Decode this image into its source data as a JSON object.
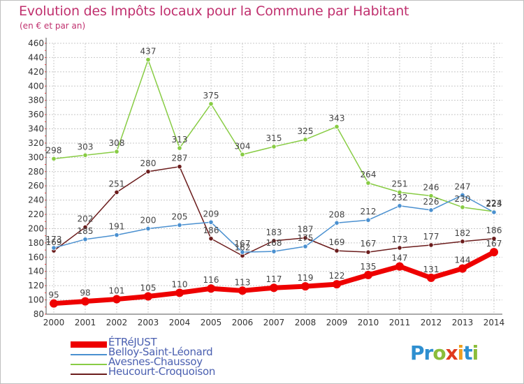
{
  "header": {
    "title": "Evolution des Impôts locaux pour la Commune par Habitant",
    "subtitle": "(en € et par an)"
  },
  "colors": {
    "title": "#c0306e",
    "legend_text": "#4a5fb0",
    "grid": "#c8c8c8"
  },
  "logo": {
    "text": "Proxiti",
    "letters": [
      {
        "ch": "P",
        "color": "#2e8fd0"
      },
      {
        "ch": "r",
        "color": "#2e8fd0"
      },
      {
        "ch": "o",
        "color": "#8bbd3a"
      },
      {
        "ch": "x",
        "color": "#e03a1e"
      },
      {
        "ch": "i",
        "color": "#f0a020"
      },
      {
        "ch": "t",
        "color": "#2e8fd0"
      },
      {
        "ch": "i",
        "color": "#8bbd3a"
      }
    ]
  },
  "chart_data": {
    "type": "line",
    "title": "Evolution des Impôts locaux pour la Commune par Habitant",
    "subtitle": "(en € et par an)",
    "xlabel": "",
    "ylabel": "",
    "ylim": [
      80,
      460
    ],
    "y_ticks": [
      80,
      100,
      120,
      140,
      160,
      180,
      200,
      220,
      240,
      260,
      280,
      300,
      320,
      340,
      360,
      380,
      400,
      420,
      440,
      460
    ],
    "x": [
      "2000",
      "2001",
      "2002",
      "2003",
      "2004",
      "2005",
      "2006",
      "2007",
      "2008",
      "2009",
      "2010",
      "2011",
      "2012",
      "2013",
      "2014"
    ],
    "grid": true,
    "legend": "bottom-left",
    "series": [
      {
        "name": "Avesnes-Chaussoy",
        "color": "#88cc44",
        "line_width": 1.5,
        "values": [
          298,
          303,
          308,
          437,
          313,
          375,
          304,
          315,
          325,
          343,
          264,
          251,
          246,
          230,
          224
        ]
      },
      {
        "name": "Heucourt-Croquoison",
        "color": "#6b1c1c",
        "line_width": 1.5,
        "values": [
          169,
          202,
          251,
          280,
          287,
          186,
          162,
          183,
          187,
          169,
          167,
          173,
          177,
          182,
          186
        ]
      },
      {
        "name": "Belloy-Saint-Léonard",
        "color": "#4a90d0",
        "line_width": 1.5,
        "values": [
          173,
          185,
          191,
          200,
          205,
          209,
          167,
          168,
          175,
          208,
          212,
          232,
          226,
          247,
          223
        ]
      },
      {
        "name": "ÉTRéJUST",
        "color": "#ee0000",
        "line_width": 7,
        "values": [
          95,
          98,
          101,
          105,
          110,
          116,
          113,
          117,
          119,
          122,
          135,
          147,
          131,
          144,
          167
        ]
      }
    ],
    "legend_order": [
      "ÉTRéJUST",
      "Belloy-Saint-Léonard",
      "Avesnes-Chaussoy",
      "Heucourt-Croquoison"
    ]
  }
}
